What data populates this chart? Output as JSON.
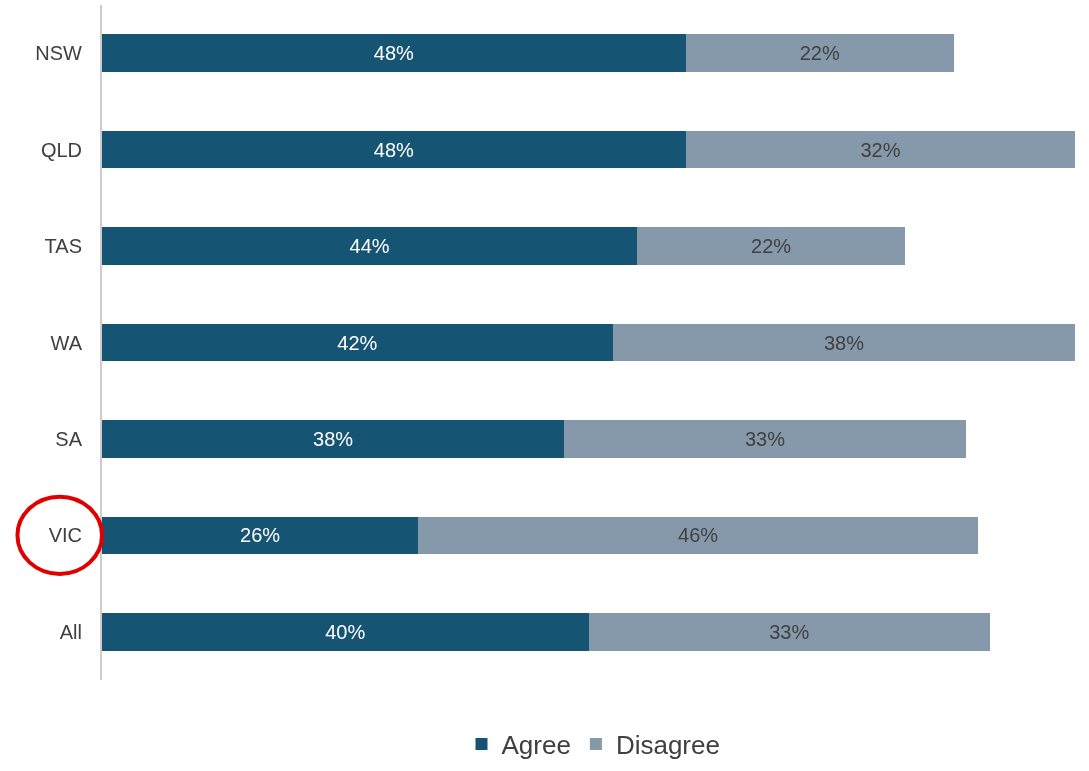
{
  "chart_data": {
    "type": "bar",
    "orientation": "horizontal",
    "stacked": true,
    "legend": "bottom",
    "tick_labels": "y",
    "categories": [
      "NSW",
      "QLD",
      "TAS",
      "WA",
      "SA",
      "VIC",
      "All"
    ],
    "series": [
      {
        "name": "Agree",
        "color": "#155472",
        "values": [
          48,
          48,
          44,
          42,
          38,
          26,
          40
        ],
        "value_labels": [
          "48%",
          "48%",
          "44%",
          "42%",
          "38%",
          "26%",
          "40%"
        ]
      },
      {
        "name": "Disagree",
        "color": "#8699aa",
        "values": [
          22,
          32,
          22,
          38,
          33,
          46,
          33
        ],
        "value_labels": [
          "22%",
          "32%",
          "22%",
          "38%",
          "33%",
          "46%",
          "33%"
        ]
      }
    ]
  }
}
